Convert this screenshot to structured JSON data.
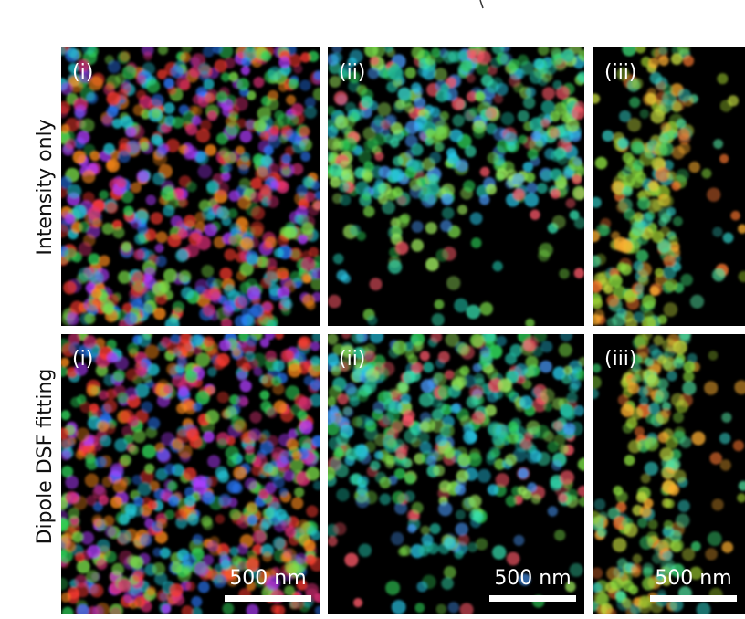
{
  "rows": [
    {
      "label": "Intensity only",
      "panels": [
        "(i)",
        "(ii)",
        "(iii)"
      ]
    },
    {
      "label": "Dipole DSF fitting",
      "panels": [
        "(i)",
        "(ii)",
        "(iii)"
      ]
    }
  ],
  "scale_bar": "500 nm"
}
